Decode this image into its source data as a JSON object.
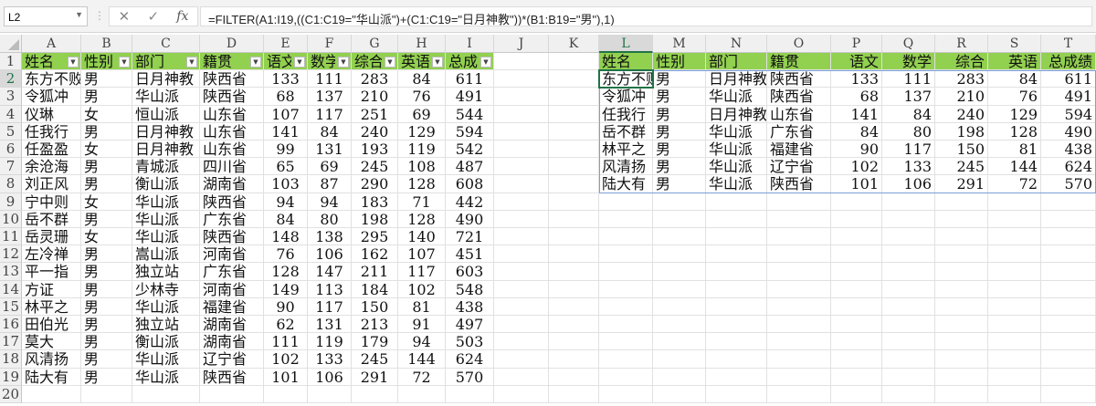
{
  "formula_bar": {
    "name_box": "L2",
    "cancel_icon": "✕",
    "enter_icon": "✓",
    "fx_label": "fx",
    "formula": "=FILTER(A1:I19,((C1:C19=\"华山派\")+(C1:C19=\"日月神教\"))*(B1:B19=\"男\"),1)"
  },
  "columns": [
    "A",
    "B",
    "C",
    "D",
    "E",
    "F",
    "G",
    "H",
    "I",
    "J",
    "K",
    "L",
    "M",
    "N",
    "O",
    "P",
    "Q",
    "R",
    "S",
    "T"
  ],
  "row_numbers": [
    "1",
    "2",
    "3",
    "4",
    "5",
    "6",
    "7",
    "8",
    "9",
    "10",
    "11",
    "12",
    "13",
    "14",
    "15",
    "16",
    "17",
    "18",
    "19",
    "20"
  ],
  "header_fill": "#92d050",
  "left_table": {
    "headers": [
      "姓名",
      "性别",
      "部门",
      "籍贯",
      "语文",
      "数学",
      "综合",
      "英语",
      "总成绩"
    ],
    "rows": [
      [
        "东方不败",
        "男",
        "日月神教",
        "陕西省",
        "133",
        "111",
        "283",
        "84",
        "611"
      ],
      [
        "令狐冲",
        "男",
        "华山派",
        "陕西省",
        "68",
        "137",
        "210",
        "76",
        "491"
      ],
      [
        "仪琳",
        "女",
        "恒山派",
        "山东省",
        "107",
        "117",
        "251",
        "69",
        "544"
      ],
      [
        "任我行",
        "男",
        "日月神教",
        "山东省",
        "141",
        "84",
        "240",
        "129",
        "594"
      ],
      [
        "任盈盈",
        "女",
        "日月神教",
        "山东省",
        "99",
        "131",
        "193",
        "119",
        "542"
      ],
      [
        "余沧海",
        "男",
        "青城派",
        "四川省",
        "65",
        "69",
        "245",
        "108",
        "487"
      ],
      [
        "刘正风",
        "男",
        "衡山派",
        "湖南省",
        "103",
        "87",
        "290",
        "128",
        "608"
      ],
      [
        "宁中则",
        "女",
        "华山派",
        "陕西省",
        "94",
        "94",
        "183",
        "71",
        "442"
      ],
      [
        "岳不群",
        "男",
        "华山派",
        "广东省",
        "84",
        "80",
        "198",
        "128",
        "490"
      ],
      [
        "岳灵珊",
        "女",
        "华山派",
        "陕西省",
        "148",
        "138",
        "295",
        "140",
        "721"
      ],
      [
        "左冷禅",
        "男",
        "嵩山派",
        "河南省",
        "76",
        "106",
        "162",
        "107",
        "451"
      ],
      [
        "平一指",
        "男",
        "独立站",
        "广东省",
        "128",
        "147",
        "211",
        "117",
        "603"
      ],
      [
        "方证",
        "男",
        "少林寺",
        "河南省",
        "149",
        "113",
        "184",
        "102",
        "548"
      ],
      [
        "林平之",
        "男",
        "华山派",
        "福建省",
        "90",
        "117",
        "150",
        "81",
        "438"
      ],
      [
        "田伯光",
        "男",
        "独立站",
        "湖南省",
        "62",
        "131",
        "213",
        "91",
        "497"
      ],
      [
        "莫大",
        "男",
        "衡山派",
        "湖南省",
        "111",
        "119",
        "179",
        "94",
        "503"
      ],
      [
        "风清扬",
        "男",
        "华山派",
        "辽宁省",
        "102",
        "133",
        "245",
        "144",
        "624"
      ],
      [
        "陆大有",
        "男",
        "华山派",
        "陕西省",
        "101",
        "106",
        "291",
        "72",
        "570"
      ]
    ]
  },
  "right_table": {
    "headers": [
      "姓名",
      "性别",
      "部门",
      "籍贯",
      "语文",
      "数学",
      "综合",
      "英语",
      "总成绩"
    ],
    "rows": [
      [
        "东方不败",
        "男",
        "日月神教",
        "陕西省",
        "133",
        "111",
        "283",
        "84",
        "611"
      ],
      [
        "令狐冲",
        "男",
        "华山派",
        "陕西省",
        "68",
        "137",
        "210",
        "76",
        "491"
      ],
      [
        "任我行",
        "男",
        "日月神教",
        "山东省",
        "141",
        "84",
        "240",
        "129",
        "594"
      ],
      [
        "岳不群",
        "男",
        "华山派",
        "广东省",
        "84",
        "80",
        "198",
        "128",
        "490"
      ],
      [
        "林平之",
        "男",
        "华山派",
        "福建省",
        "90",
        "117",
        "150",
        "81",
        "438"
      ],
      [
        "风清扬",
        "男",
        "华山派",
        "辽宁省",
        "102",
        "133",
        "245",
        "144",
        "624"
      ],
      [
        "陆大有",
        "男",
        "华山派",
        "陕西省",
        "101",
        "106",
        "291",
        "72",
        "570"
      ]
    ]
  }
}
